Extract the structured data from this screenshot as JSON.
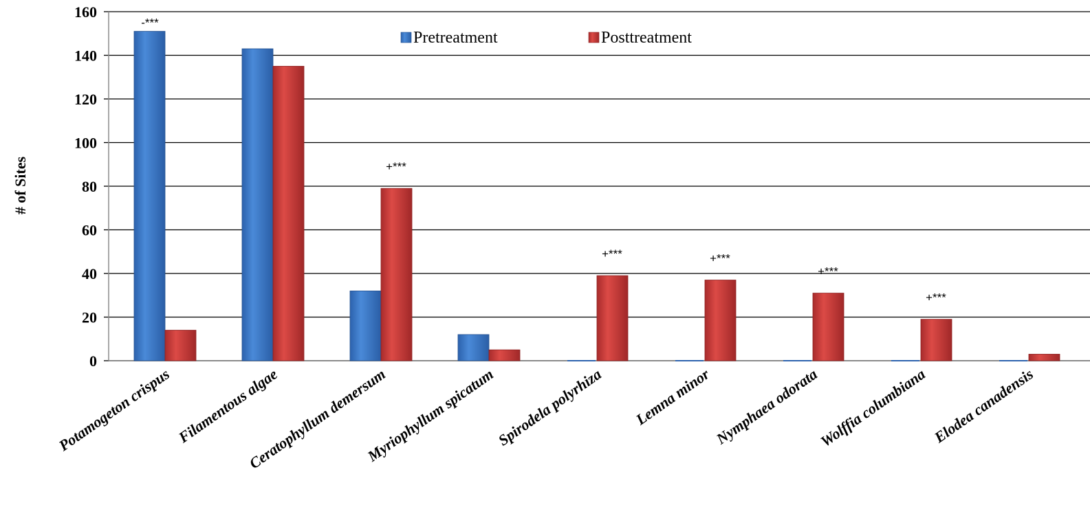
{
  "chart_data": {
    "type": "bar",
    "ylabel": "# of Sites",
    "xlabel": "",
    "ylim": [
      0,
      160
    ],
    "yticks": [
      0,
      20,
      40,
      60,
      80,
      100,
      120,
      140,
      160
    ],
    "grid": true,
    "legend_position": "top-center",
    "categories": [
      "Potamogeton crispus",
      "Filamentous algae",
      "Ceratophyllum demersum",
      "Myriophyllum spicatum",
      "Spirodela polyrhiza",
      "Lemna minor",
      "Nymphaea odorata",
      "Wolffia columbiana",
      "Elodea canadensis"
    ],
    "series": [
      {
        "name": "Pretreatment",
        "color": "#3b78c8",
        "values": [
          151,
          143,
          32,
          12,
          0,
          0,
          0,
          0,
          0
        ]
      },
      {
        "name": "Posttreatment",
        "color": "#c83c3c",
        "values": [
          14,
          135,
          79,
          5,
          39,
          37,
          31,
          19,
          3
        ]
      }
    ],
    "annotations": [
      {
        "category": "Potamogeton crispus",
        "text": "-***"
      },
      {
        "category": "Ceratophyllum demersum",
        "text": "+***"
      },
      {
        "category": "Spirodela polyrhiza",
        "text": "+***"
      },
      {
        "category": "Lemna minor",
        "text": "+***"
      },
      {
        "category": "Nymphaea odorata",
        "text": "+***"
      },
      {
        "category": "Wolffia columbiana",
        "text": "+***"
      }
    ]
  }
}
